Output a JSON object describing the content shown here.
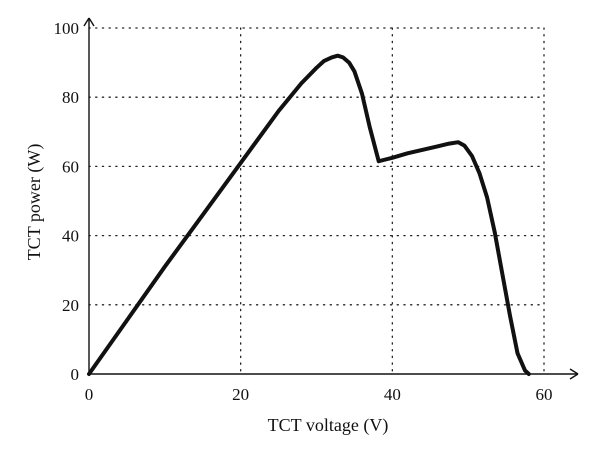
{
  "chart_data": {
    "type": "line",
    "xlabel": "TCT voltage (V)",
    "ylabel": "TCT power (W)",
    "xlim": [
      0,
      60
    ],
    "ylim": [
      0,
      100
    ],
    "x_ticks": [
      "0",
      "20",
      "40",
      "60"
    ],
    "y_ticks": [
      "0",
      "20",
      "40",
      "60",
      "80",
      "100"
    ],
    "grid": true,
    "grid_style": "dotted",
    "line_color": "#111111",
    "series": [
      {
        "x": [
          0,
          5,
          10,
          15,
          20,
          25,
          28,
          30,
          31,
          32,
          32.8,
          33.5,
          34.3,
          35,
          36,
          37,
          38.2,
          40,
          42,
          44,
          46,
          47.5,
          48.7,
          49.5,
          50.5,
          51.5,
          52.5,
          53.5,
          54.5,
          55.5,
          56.5,
          57.5,
          58
        ],
        "y": [
          0,
          15.5,
          31,
          46,
          61,
          76,
          84,
          88.5,
          90.5,
          91.5,
          92,
          91.5,
          90,
          87.5,
          81,
          71.5,
          61.5,
          62.5,
          63.8,
          64.8,
          65.8,
          66.6,
          67,
          66,
          63,
          58,
          51,
          41,
          29,
          17,
          6,
          1,
          0
        ]
      }
    ]
  }
}
